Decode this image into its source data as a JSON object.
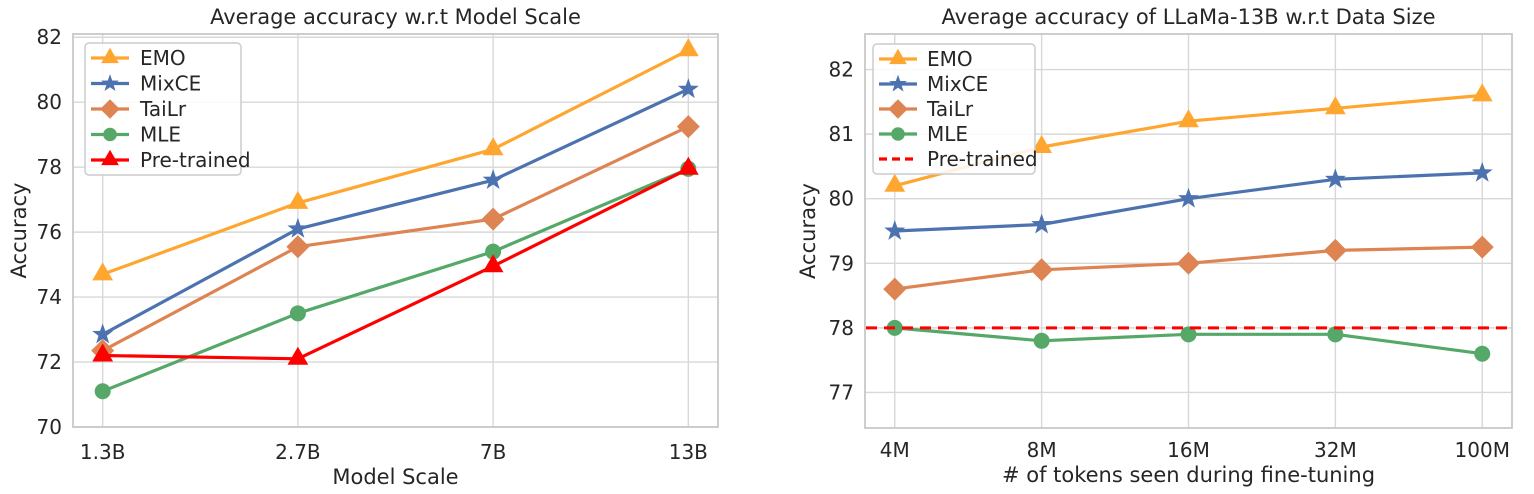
{
  "figure": {
    "background": "#ffffff",
    "text_color": "#262626",
    "grid_color": "#d8d8d8",
    "spine_color": "#c8c8c8"
  },
  "chart_data": [
    {
      "type": "line",
      "title": "Average accuracy w.r.t Model Scale",
      "xlabel": "Model Scale",
      "ylabel": "Accuracy",
      "categories": [
        "1.3B",
        "2.7B",
        "7B",
        "13B"
      ],
      "yticks": [
        70,
        72,
        74,
        76,
        78,
        80,
        82
      ],
      "ylim": [
        70,
        82.1
      ],
      "grid": true,
      "legend_position": "upper left",
      "series": [
        {
          "name": "EMO",
          "color": "#FFA630",
          "marker": "triangle",
          "line": "solid",
          "values": [
            74.7,
            76.9,
            78.55,
            81.6
          ]
        },
        {
          "name": "MixCE",
          "color": "#4C72B0",
          "marker": "star",
          "line": "solid",
          "values": [
            72.85,
            76.1,
            77.6,
            80.4
          ]
        },
        {
          "name": "TaiLr",
          "color": "#DD8452",
          "marker": "diamond",
          "line": "solid",
          "values": [
            72.35,
            75.55,
            76.4,
            79.25
          ]
        },
        {
          "name": "MLE",
          "color": "#55A868",
          "marker": "circle",
          "line": "solid",
          "values": [
            71.1,
            73.5,
            75.4,
            77.95
          ]
        },
        {
          "name": "Pre-trained",
          "color": "#FF0000",
          "marker": "triangle",
          "line": "solid",
          "values": [
            72.2,
            72.1,
            74.95,
            77.95
          ]
        }
      ]
    },
    {
      "type": "line",
      "title": "Average accuracy of LLaMa-13B w.r.t Data Size",
      "xlabel": "# of tokens seen during fine-tuning",
      "ylabel": "Accuracy",
      "categories": [
        "4M",
        "8M",
        "16M",
        "32M",
        "100M"
      ],
      "yticks": [
        77,
        78,
        79,
        80,
        81,
        82
      ],
      "ylim": [
        76.45,
        82.55
      ],
      "grid": true,
      "legend_position": "upper left",
      "series": [
        {
          "name": "EMO",
          "color": "#FFA630",
          "marker": "triangle",
          "line": "solid",
          "values": [
            80.2,
            80.8,
            81.2,
            81.4,
            81.6
          ]
        },
        {
          "name": "MixCE",
          "color": "#4C72B0",
          "marker": "star",
          "line": "solid",
          "values": [
            79.5,
            79.6,
            80.0,
            80.3,
            80.4
          ]
        },
        {
          "name": "TaiLr",
          "color": "#DD8452",
          "marker": "diamond",
          "line": "solid",
          "values": [
            78.6,
            78.9,
            79.0,
            79.2,
            79.25
          ]
        },
        {
          "name": "MLE",
          "color": "#55A868",
          "marker": "circle",
          "line": "solid",
          "values": [
            78.0,
            77.8,
            77.9,
            77.9,
            77.6
          ]
        },
        {
          "name": "Pre-trained",
          "color": "#FF0000",
          "marker": "none",
          "line": "dashed",
          "hline": 78.0,
          "values": [
            78.0,
            78.0,
            78.0,
            78.0,
            78.0
          ]
        }
      ]
    }
  ]
}
